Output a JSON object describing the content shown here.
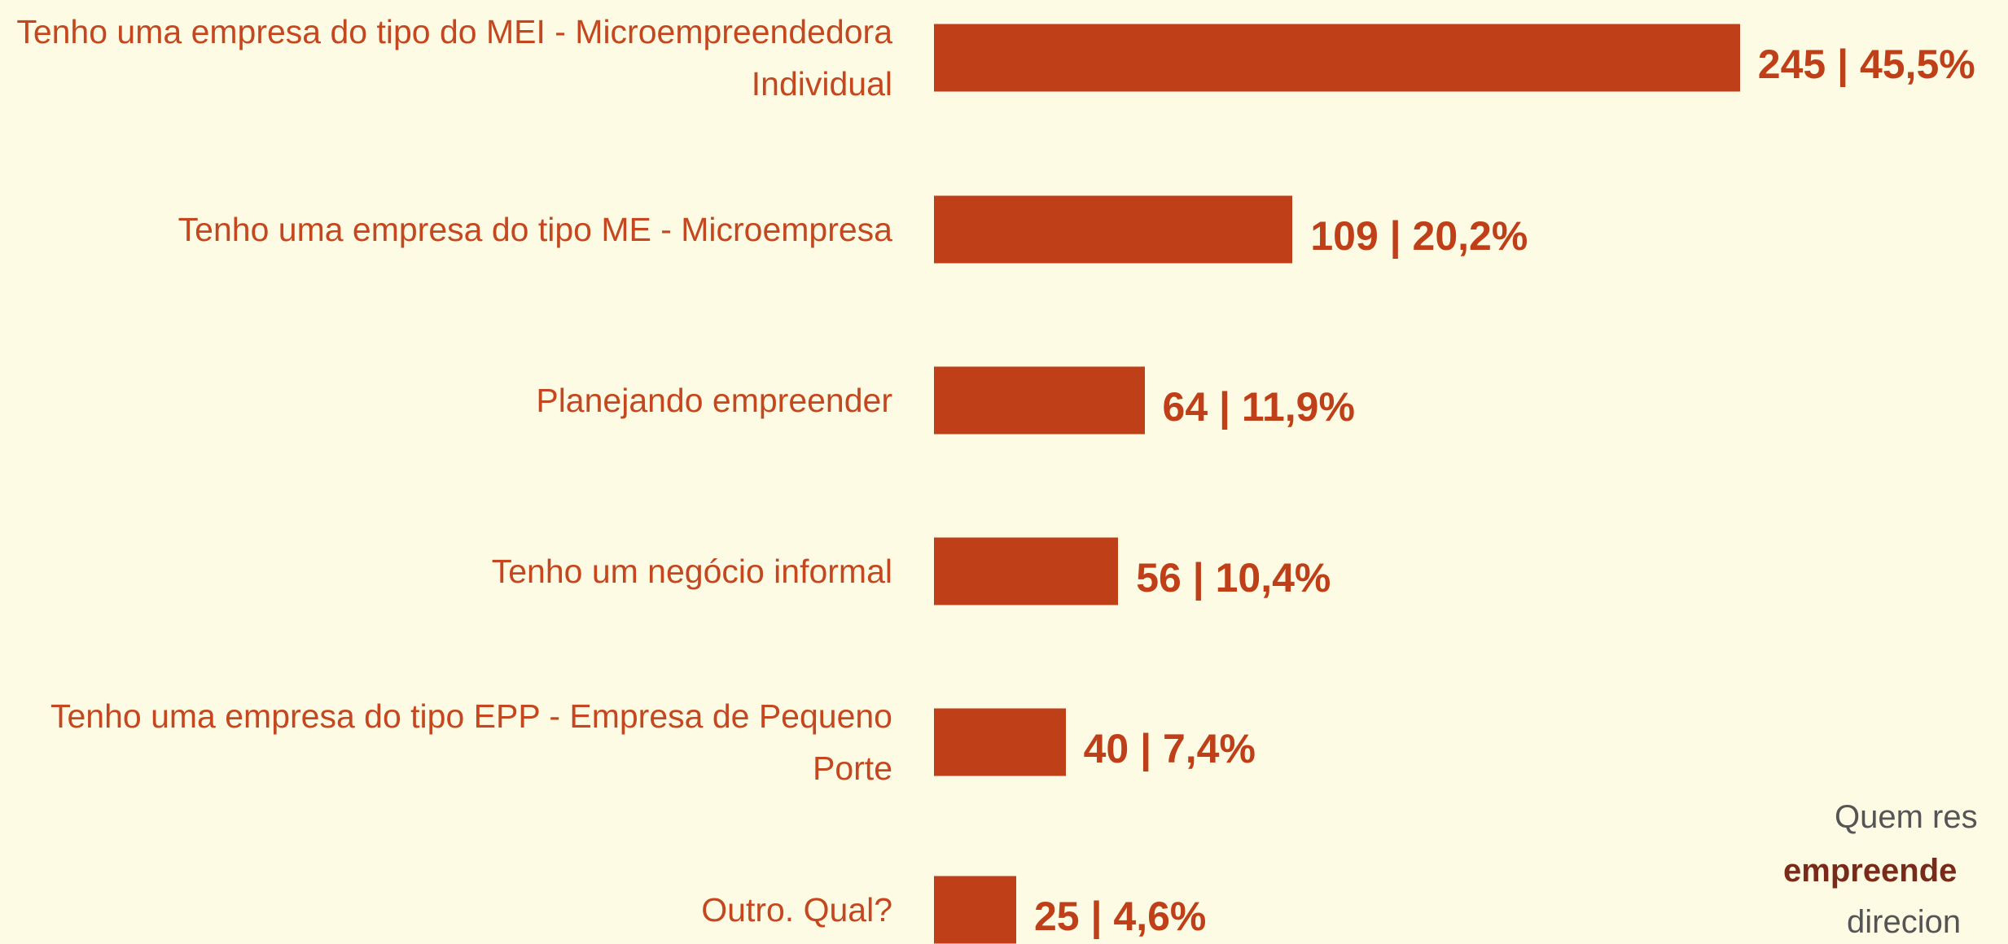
{
  "chart_data": {
    "type": "barh",
    "categories": [
      "Tenho uma empresa do tipo do MEI - Microempreendedora Individual",
      "Tenho uma empresa do tipo ME - Microempresa",
      "Planejando empreender",
      "Tenho um negócio informal",
      "Tenho uma empresa do tipo EPP - Empresa de Pequeno Porte",
      "Outro. Qual?"
    ],
    "values": [
      245,
      109,
      64,
      56,
      40,
      25
    ],
    "value_labels": [
      "245 | 45,5%",
      "109 | 20,2%",
      "64 | 11,9%",
      "56 | 10,4%",
      "40 | 7,4%",
      "25 | 4,6%"
    ],
    "color": "#bf3f18",
    "annotations": [
      "Quem res",
      "empreende",
      "direcion"
    ]
  }
}
